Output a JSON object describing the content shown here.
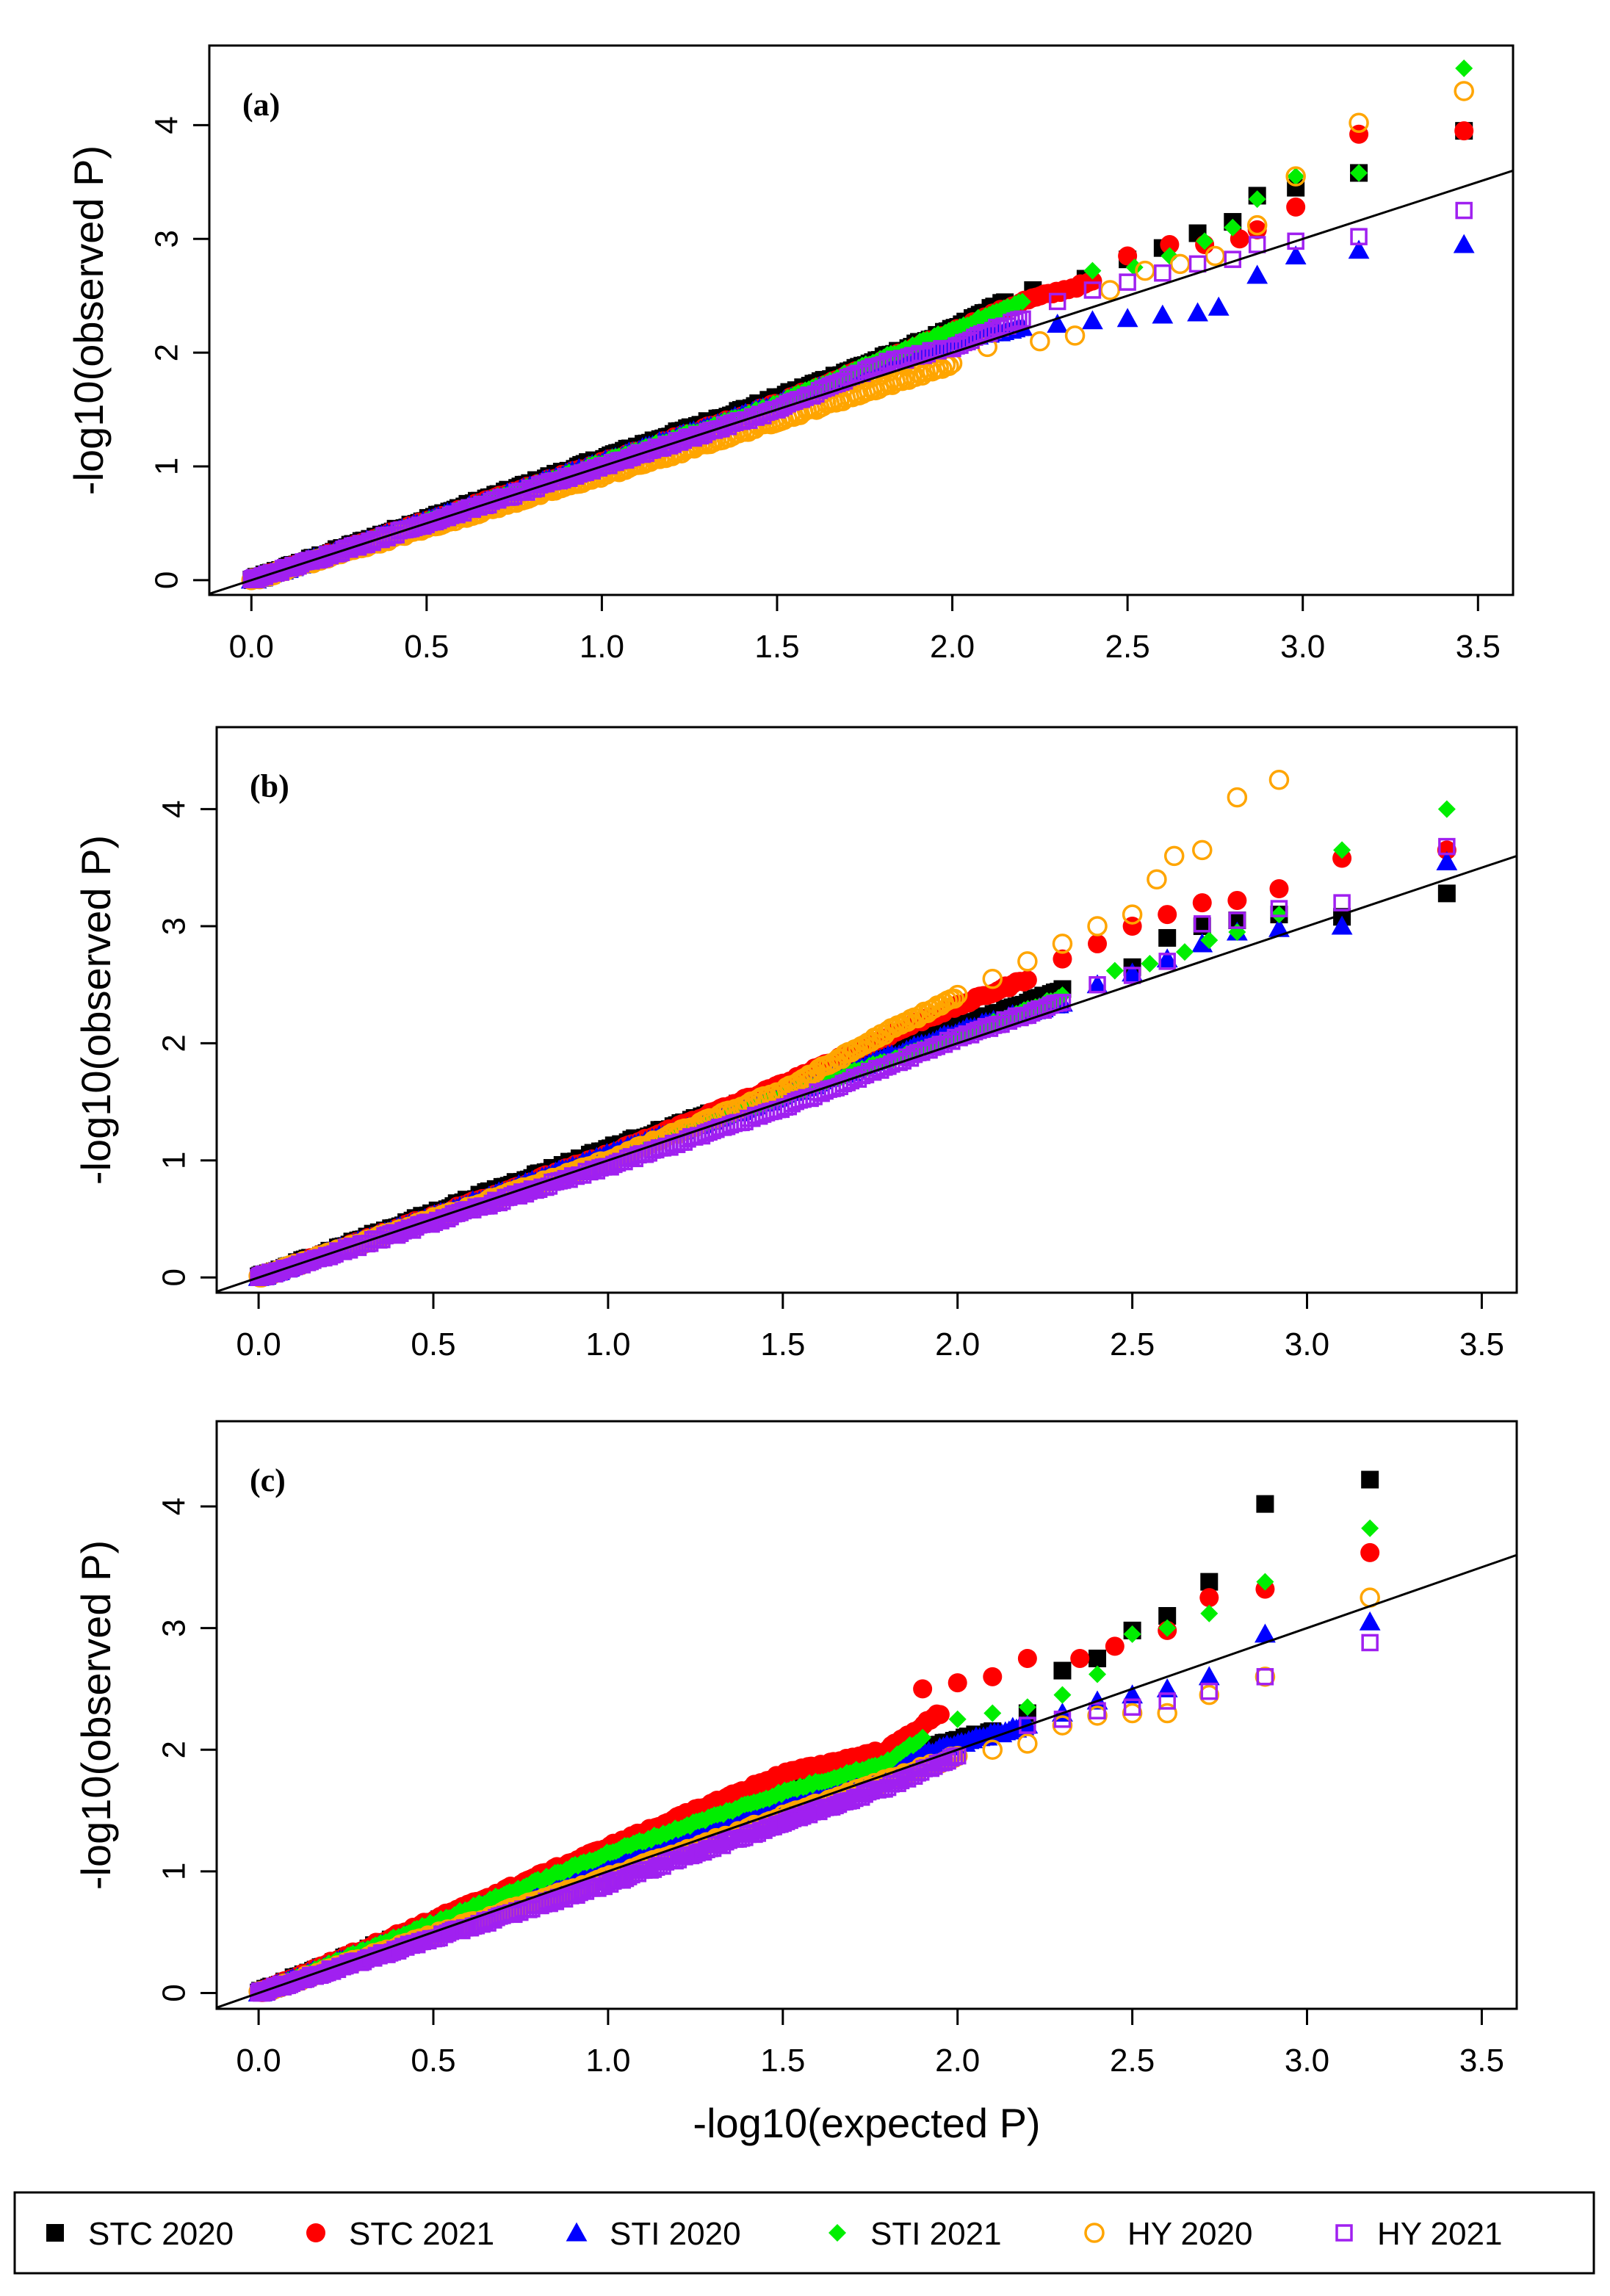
{
  "figure": {
    "legend": [
      {
        "label": "STC 2020",
        "color": "#000000",
        "shape": "square"
      },
      {
        "label": "STC 2021",
        "color": "#ff0000",
        "shape": "circle"
      },
      {
        "label": "STI 2020",
        "color": "#0000ff",
        "shape": "triangle"
      },
      {
        "label": "STI 2021",
        "color": "#00ee00",
        "shape": "diamond"
      },
      {
        "label": "HY 2020",
        "color": "#ffa500",
        "shape": "circle-open"
      },
      {
        "label": "HY 2021",
        "color": "#a020f0",
        "shape": "square-open"
      }
    ]
  },
  "chart_data": [
    {
      "type": "scatter",
      "panel_label": "(a)",
      "xlabel": "",
      "ylabel": "-log10(observed P)",
      "xlim": [
        -0.12,
        3.6
      ],
      "ylim": [
        -0.13,
        4.7
      ],
      "xticks": [
        "0.0",
        "0.5",
        "1.0",
        "1.5",
        "2.0",
        "2.5",
        "3.0",
        "3.5"
      ],
      "yticks": [
        "0",
        "1",
        "2",
        "3",
        "4"
      ],
      "reference_line": "y = x",
      "series": [
        {
          "name": "STC 2020",
          "upper": [
            [
              2.23,
              2.55
            ],
            [
              2.38,
              2.65
            ],
            [
              2.5,
              2.82
            ],
            [
              2.6,
              2.92
            ],
            [
              2.7,
              3.05
            ],
            [
              2.8,
              3.15
            ],
            [
              2.87,
              3.38
            ],
            [
              2.98,
              3.45
            ],
            [
              3.16,
              3.58
            ],
            [
              3.46,
              3.95
            ]
          ],
          "lower": [
            [
              1.5,
              1.6
            ],
            [
              1.8,
              1.95
            ],
            [
              2.0,
              2.2
            ],
            [
              2.15,
              2.45
            ]
          ]
        },
        {
          "name": "STC 2021",
          "upper": [
            [
              2.5,
              2.85
            ],
            [
              2.62,
              2.95
            ],
            [
              2.72,
              2.95
            ],
            [
              2.82,
              3.0
            ],
            [
              2.87,
              3.08
            ],
            [
              2.98,
              3.28
            ],
            [
              3.16,
              3.92
            ],
            [
              3.46,
              3.95
            ]
          ],
          "lower": [
            [
              1.5,
              1.55
            ],
            [
              1.9,
              2.05
            ],
            [
              2.2,
              2.45
            ],
            [
              2.4,
              2.62
            ]
          ]
        },
        {
          "name": "STI 2020",
          "upper": [
            [
              2.3,
              2.25
            ],
            [
              2.4,
              2.28
            ],
            [
              2.5,
              2.3
            ],
            [
              2.6,
              2.33
            ],
            [
              2.7,
              2.35
            ],
            [
              2.76,
              2.4
            ],
            [
              2.87,
              2.68
            ],
            [
              2.98,
              2.85
            ],
            [
              3.16,
              2.9
            ],
            [
              3.46,
              2.95
            ]
          ],
          "lower": [
            [
              1.5,
              1.55
            ],
            [
              1.8,
              1.9
            ],
            [
              2.0,
              2.12
            ],
            [
              2.2,
              2.22
            ]
          ]
        },
        {
          "name": "STI 2021",
          "upper": [
            [
              2.4,
              2.72
            ],
            [
              2.52,
              2.75
            ],
            [
              2.62,
              2.85
            ],
            [
              2.72,
              2.98
            ],
            [
              2.8,
              3.1
            ],
            [
              2.87,
              3.35
            ],
            [
              2.98,
              3.55
            ],
            [
              3.16,
              3.58
            ],
            [
              3.46,
              4.5
            ]
          ],
          "lower": [
            [
              1.5,
              1.55
            ],
            [
              1.8,
              1.95
            ],
            [
              2.0,
              2.2
            ],
            [
              2.2,
              2.45
            ]
          ]
        },
        {
          "name": "HY 2020",
          "upper": [
            [
              2.1,
              2.05
            ],
            [
              2.25,
              2.1
            ],
            [
              2.35,
              2.15
            ],
            [
              2.45,
              2.55
            ],
            [
              2.55,
              2.72
            ],
            [
              2.65,
              2.78
            ],
            [
              2.75,
              2.85
            ],
            [
              2.87,
              3.12
            ],
            [
              2.98,
              3.55
            ],
            [
              3.16,
              4.02
            ],
            [
              3.46,
              4.3
            ]
          ],
          "lower": [
            [
              1.2,
              1.1
            ],
            [
              1.5,
              1.4
            ],
            [
              1.8,
              1.7
            ],
            [
              2.0,
              1.9
            ]
          ]
        },
        {
          "name": "HY 2021",
          "upper": [
            [
              2.3,
              2.45
            ],
            [
              2.4,
              2.55
            ],
            [
              2.5,
              2.62
            ],
            [
              2.6,
              2.7
            ],
            [
              2.7,
              2.78
            ],
            [
              2.8,
              2.82
            ],
            [
              2.87,
              2.95
            ],
            [
              2.98,
              2.98
            ],
            [
              3.16,
              3.02
            ],
            [
              3.46,
              3.25
            ]
          ],
          "lower": [
            [
              1.5,
              1.5
            ],
            [
              1.8,
              1.9
            ],
            [
              2.0,
              2.05
            ],
            [
              2.2,
              2.3
            ]
          ]
        }
      ]
    },
    {
      "type": "scatter",
      "panel_label": "(b)",
      "xlabel": "",
      "ylabel": "-log10(observed P)",
      "xlim": [
        -0.12,
        3.6
      ],
      "ylim": [
        -0.13,
        4.7
      ],
      "xticks": [
        "0.0",
        "0.5",
        "1.0",
        "1.5",
        "2.0",
        "2.5",
        "3.0",
        "3.5"
      ],
      "yticks": [
        "0",
        "1",
        "2",
        "3",
        "4"
      ],
      "reference_line": "y = x",
      "series": [
        {
          "name": "STC 2020",
          "upper": [
            [
              2.5,
              2.65
            ],
            [
              2.6,
              2.9
            ],
            [
              2.7,
              3.0
            ],
            [
              2.8,
              3.05
            ],
            [
              2.92,
              3.1
            ],
            [
              3.1,
              3.08
            ],
            [
              3.4,
              3.28
            ]
          ],
          "lower": [
            [
              1.0,
              1.1
            ],
            [
              1.5,
              1.6
            ],
            [
              2.0,
              2.15
            ],
            [
              2.3,
              2.45
            ]
          ]
        },
        {
          "name": "STC 2021",
          "upper": [
            [
              2.3,
              2.72
            ],
            [
              2.4,
              2.85
            ],
            [
              2.5,
              3.0
            ],
            [
              2.6,
              3.1
            ],
            [
              2.7,
              3.2
            ],
            [
              2.8,
              3.22
            ],
            [
              2.92,
              3.32
            ],
            [
              3.1,
              3.58
            ],
            [
              3.4,
              3.65
            ]
          ],
          "lower": [
            [
              1.0,
              1.05
            ],
            [
              1.5,
              1.65
            ],
            [
              1.9,
              2.2
            ],
            [
              2.2,
              2.55
            ]
          ]
        },
        {
          "name": "STI 2020",
          "upper": [
            [
              2.4,
              2.5
            ],
            [
              2.5,
              2.6
            ],
            [
              2.6,
              2.72
            ],
            [
              2.7,
              2.85
            ],
            [
              2.8,
              2.95
            ],
            [
              2.92,
              2.98
            ],
            [
              3.1,
              3.0
            ],
            [
              3.4,
              3.55
            ]
          ],
          "lower": [
            [
              1.0,
              1.05
            ],
            [
              1.5,
              1.55
            ],
            [
              2.0,
              2.1
            ],
            [
              2.3,
              2.35
            ]
          ]
        },
        {
          "name": "STI 2021",
          "upper": [
            [
              2.45,
              2.62
            ],
            [
              2.55,
              2.68
            ],
            [
              2.65,
              2.78
            ],
            [
              2.72,
              2.88
            ],
            [
              2.8,
              2.95
            ],
            [
              2.92,
              3.1
            ],
            [
              3.1,
              3.65
            ],
            [
              3.4,
              4.0
            ]
          ],
          "lower": [
            [
              1.0,
              1.0
            ],
            [
              1.5,
              1.55
            ],
            [
              2.0,
              2.05
            ],
            [
              2.3,
              2.4
            ]
          ]
        },
        {
          "name": "HY 2020",
          "upper": [
            [
              2.1,
              2.55
            ],
            [
              2.2,
              2.7
            ],
            [
              2.3,
              2.85
            ],
            [
              2.4,
              3.0
            ],
            [
              2.5,
              3.1
            ],
            [
              2.57,
              3.4
            ],
            [
              2.62,
              3.6
            ],
            [
              2.7,
              3.65
            ],
            [
              2.8,
              4.1
            ],
            [
              2.92,
              4.25
            ]
          ],
          "lower": [
            [
              1.0,
              1.0
            ],
            [
              1.5,
              1.6
            ],
            [
              1.8,
              2.1
            ],
            [
              2.0,
              2.4
            ]
          ]
        },
        {
          "name": "HY 2021",
          "upper": [
            [
              2.4,
              2.5
            ],
            [
              2.5,
              2.58
            ],
            [
              2.6,
              2.7
            ],
            [
              2.7,
              3.02
            ],
            [
              2.8,
              3.05
            ],
            [
              2.92,
              3.15
            ],
            [
              3.1,
              3.2
            ],
            [
              3.4,
              3.68
            ]
          ],
          "lower": [
            [
              1.0,
              0.95
            ],
            [
              1.5,
              1.45
            ],
            [
              2.0,
              2.05
            ],
            [
              2.3,
              2.35
            ]
          ]
        }
      ]
    },
    {
      "type": "scatter",
      "panel_label": "(c)",
      "xlabel": "-log10(expected P)",
      "ylabel": "-log10(observed P)",
      "xlim": [
        -0.12,
        3.6
      ],
      "ylim": [
        -0.13,
        4.7
      ],
      "xticks": [
        "0.0",
        "0.5",
        "1.0",
        "1.5",
        "2.0",
        "2.5",
        "3.0",
        "3.5"
      ],
      "yticks": [
        "0",
        "1",
        "2",
        "3",
        "4"
      ],
      "reference_line": "y = x",
      "series": [
        {
          "name": "STC 2020",
          "upper": [
            [
              2.2,
              2.3
            ],
            [
              2.3,
              2.65
            ],
            [
              2.4,
              2.75
            ],
            [
              2.5,
              2.98
            ],
            [
              2.6,
              3.1
            ],
            [
              2.72,
              3.38
            ],
            [
              2.88,
              4.02
            ],
            [
              3.18,
              4.22
            ]
          ],
          "lower": [
            [
              1.0,
              1.15
            ],
            [
              1.5,
              1.7
            ],
            [
              1.9,
              2.0
            ],
            [
              2.1,
              2.15
            ]
          ]
        },
        {
          "name": "STC 2021",
          "upper": [
            [
              1.9,
              2.5
            ],
            [
              2.0,
              2.55
            ],
            [
              2.1,
              2.6
            ],
            [
              2.2,
              2.75
            ],
            [
              2.35,
              2.75
            ],
            [
              2.45,
              2.85
            ],
            [
              2.6,
              2.98
            ],
            [
              2.72,
              3.25
            ],
            [
              2.88,
              3.32
            ],
            [
              3.18,
              3.62
            ]
          ],
          "lower": [
            [
              1.0,
              1.2
            ],
            [
              1.5,
              1.8
            ],
            [
              1.8,
              2.0
            ],
            [
              1.95,
              2.3
            ]
          ]
        },
        {
          "name": "STI 2020",
          "upper": [
            [
              2.3,
              2.3
            ],
            [
              2.4,
              2.4
            ],
            [
              2.5,
              2.45
            ],
            [
              2.6,
              2.5
            ],
            [
              2.72,
              2.6
            ],
            [
              2.88,
              2.95
            ],
            [
              3.18,
              3.05
            ]
          ],
          "lower": [
            [
              1.0,
              1.1
            ],
            [
              1.5,
              1.6
            ],
            [
              2.0,
              2.05
            ],
            [
              2.2,
              2.2
            ]
          ]
        },
        {
          "name": "STI 2021",
          "upper": [
            [
              2.0,
              2.25
            ],
            [
              2.1,
              2.3
            ],
            [
              2.2,
              2.35
            ],
            [
              2.3,
              2.45
            ],
            [
              2.4,
              2.62
            ],
            [
              2.5,
              2.95
            ],
            [
              2.6,
              3.0
            ],
            [
              2.72,
              3.12
            ],
            [
              2.88,
              3.38
            ],
            [
              3.18,
              3.82
            ]
          ],
          "lower": [
            [
              1.0,
              1.15
            ],
            [
              1.5,
              1.65
            ],
            [
              1.8,
              1.9
            ],
            [
              1.9,
              2.1
            ]
          ]
        },
        {
          "name": "HY 2020",
          "upper": [
            [
              2.1,
              2.0
            ],
            [
              2.2,
              2.05
            ],
            [
              2.3,
              2.2
            ],
            [
              2.4,
              2.28
            ],
            [
              2.5,
              2.3
            ],
            [
              2.6,
              2.3
            ],
            [
              2.72,
              2.45
            ],
            [
              2.88,
              2.6
            ],
            [
              3.18,
              3.25
            ]
          ],
          "lower": [
            [
              1.0,
              0.95
            ],
            [
              1.5,
              1.45
            ],
            [
              1.8,
              1.75
            ],
            [
              2.0,
              1.95
            ]
          ]
        },
        {
          "name": "HY 2021",
          "upper": [
            [
              2.2,
              2.2
            ],
            [
              2.3,
              2.25
            ],
            [
              2.4,
              2.32
            ],
            [
              2.5,
              2.35
            ],
            [
              2.6,
              2.4
            ],
            [
              2.72,
              2.48
            ],
            [
              2.88,
              2.6
            ],
            [
              3.18,
              2.88
            ]
          ],
          "lower": [
            [
              1.0,
              0.9
            ],
            [
              1.5,
              1.4
            ],
            [
              1.8,
              1.7
            ],
            [
              2.0,
              1.95
            ]
          ]
        }
      ]
    }
  ]
}
